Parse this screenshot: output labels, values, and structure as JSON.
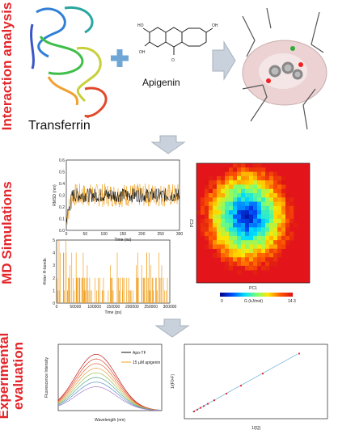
{
  "sections": [
    {
      "lines": [
        "Interaction analysis"
      ]
    },
    {
      "lines": [
        "MD Simulations"
      ]
    },
    {
      "lines": [
        "Experimental",
        "evaluation"
      ]
    }
  ],
  "interaction": {
    "protein_label": "Transferrin",
    "ligand_label": "Apigenin",
    "structure_labels": [
      "HO",
      "OH",
      "OH",
      "O"
    ]
  },
  "md": {
    "rmsd": {
      "x_label": "Time (ns)",
      "y_label": "RMSD (nm)",
      "x_ticks": [
        "0",
        "50",
        "100",
        "150",
        "200",
        "250",
        "300"
      ],
      "y_ticks": [
        "0.0",
        "0.1",
        "0.2",
        "0.3",
        "0.4",
        "0.5",
        "0.6"
      ]
    },
    "hbonds": {
      "x_label": "Time (ps)",
      "y_label": "#Inter H-bonds",
      "x_ticks": [
        "0",
        "50000",
        "100000",
        "150000",
        "200000",
        "250000",
        "300000"
      ],
      "y_ticks": [
        "0",
        "1",
        "2",
        "3",
        "4",
        "5"
      ]
    },
    "fel": {
      "x_label": "PC1",
      "y_label": "PC2",
      "colorbar_label": "G (kJ/mol)",
      "colorbar_min": "0",
      "colorbar_max": "14.3"
    }
  },
  "experimental": {
    "fluorescence": {
      "x_label": "Wavelength (nm)",
      "y_label": "Fluorescence Intensity",
      "legend": [
        "Apo-TF",
        "15 µM apigenin"
      ]
    },
    "stern_volmer": {
      "x_label": "1/[Q]",
      "y_label": "1/(F0-F)"
    }
  }
}
